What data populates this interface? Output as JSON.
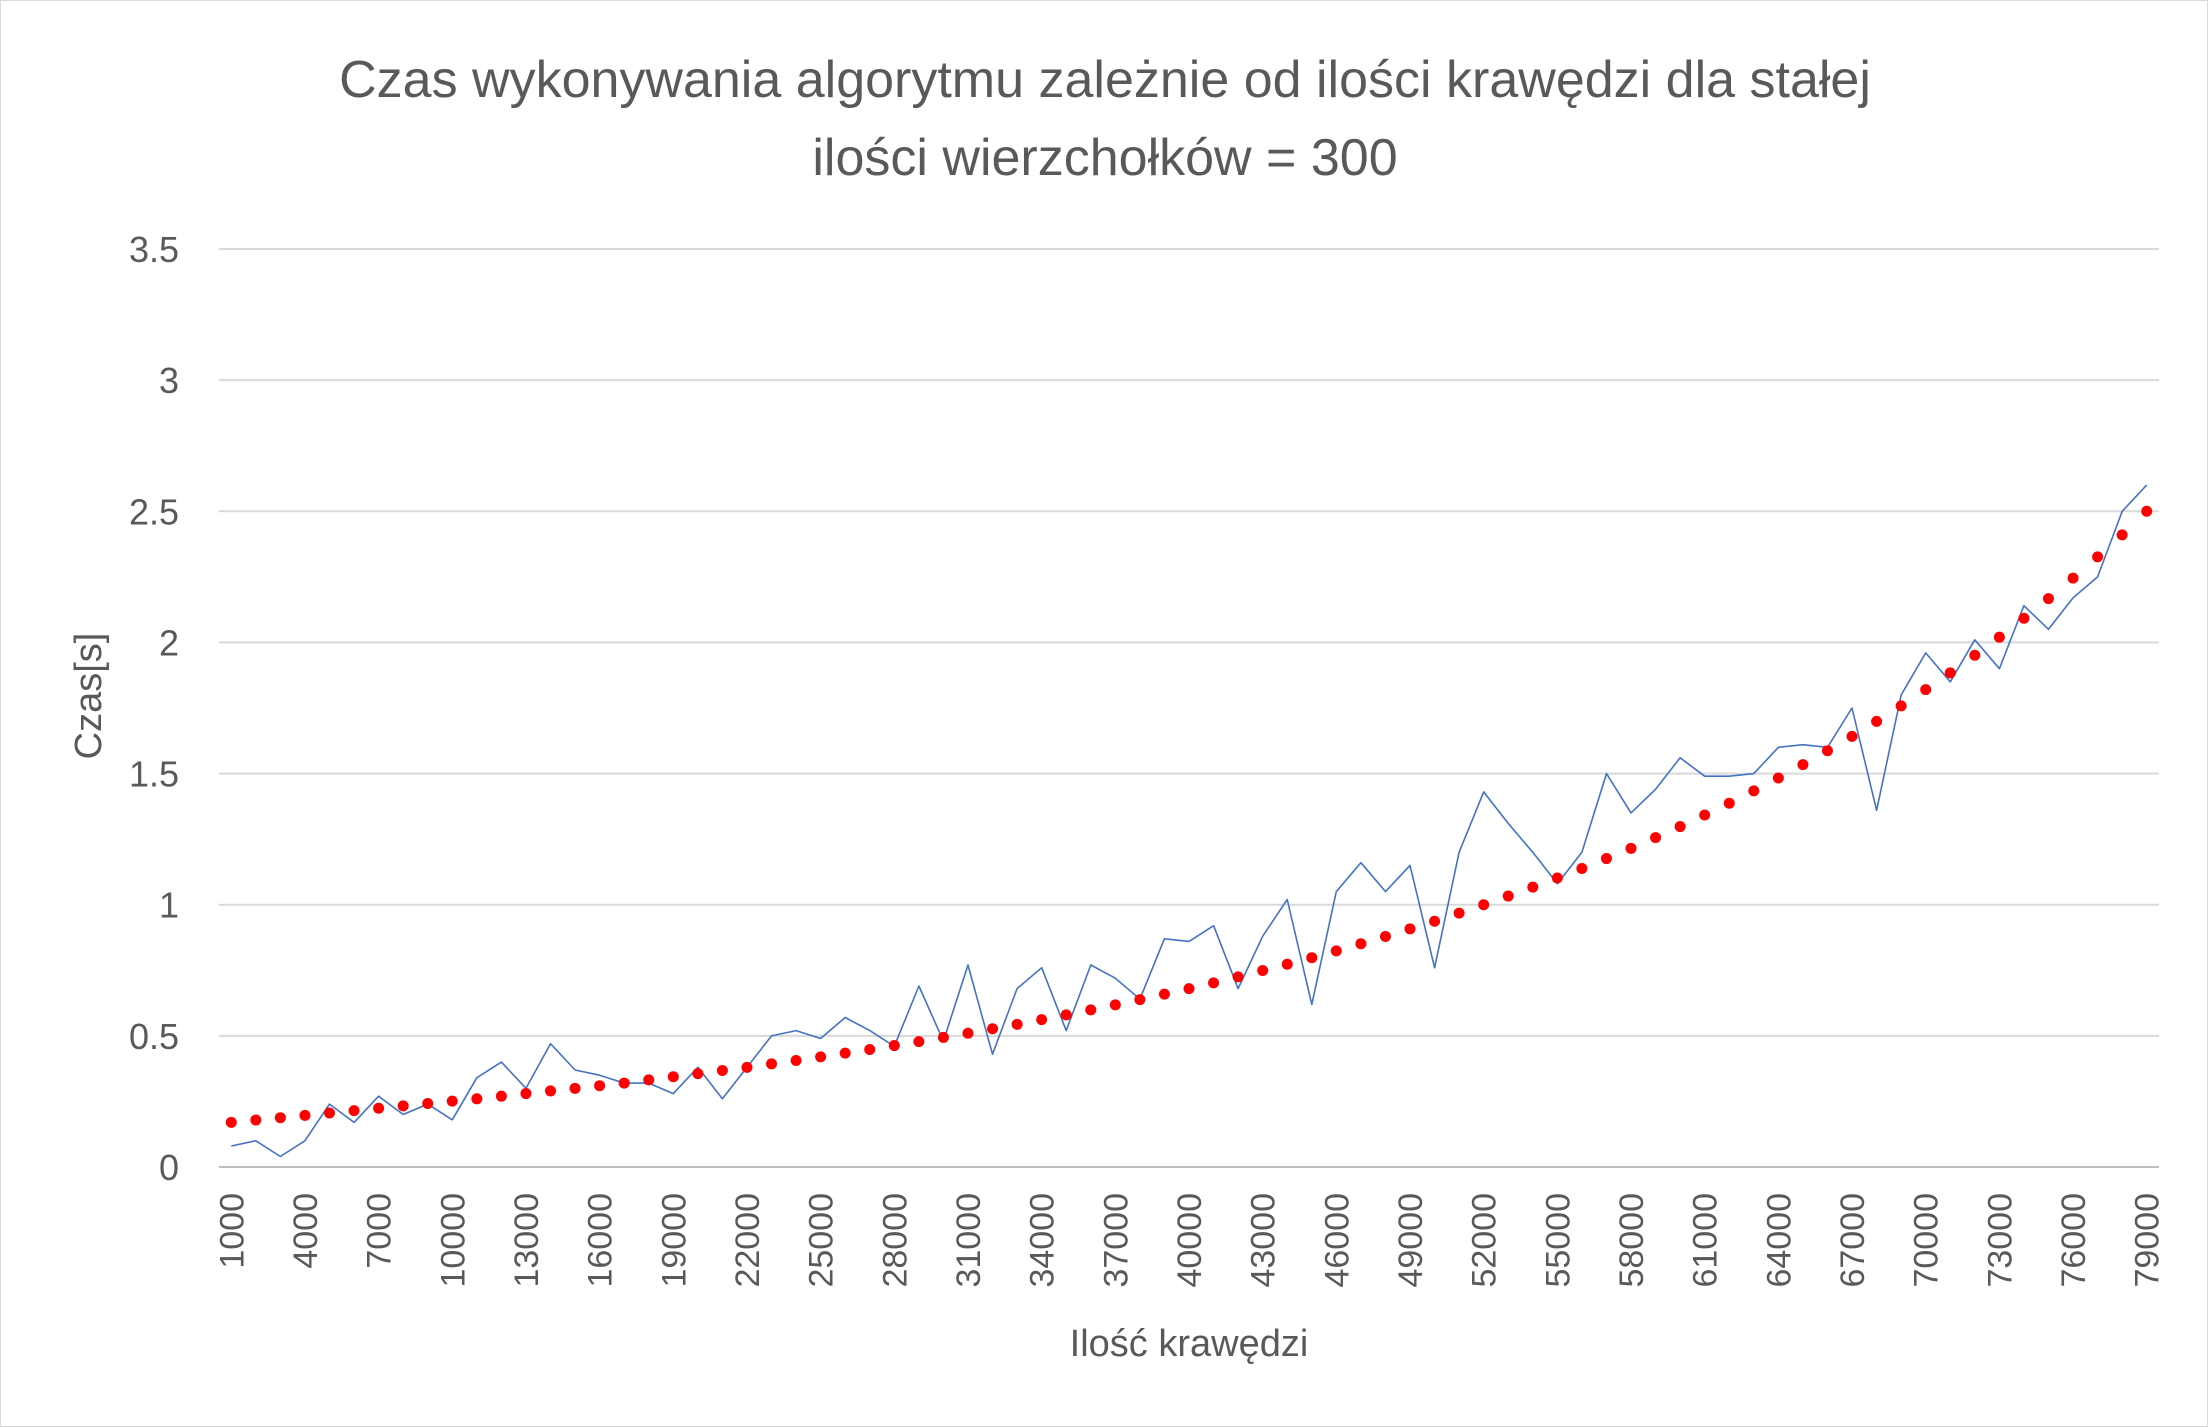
{
  "chart_data": {
    "type": "line",
    "title_lines": [
      "Czas wykonywania algorytmu zależnie od ilości krawędzi dla stałej",
      "ilości wierzchołków = 300"
    ],
    "xlabel": "Ilość krawędzi",
    "ylabel": "Czas[s]",
    "ylim": [
      0,
      3.5
    ],
    "yticks": [
      "0",
      "0.5",
      "1",
      "1.5",
      "2",
      "2.5",
      "3",
      "3.5"
    ],
    "x": [
      1000,
      2000,
      3000,
      4000,
      5000,
      6000,
      7000,
      8000,
      9000,
      10000,
      11000,
      12000,
      13000,
      14000,
      15000,
      16000,
      17000,
      18000,
      19000,
      20000,
      21000,
      22000,
      23000,
      24000,
      25000,
      26000,
      27000,
      28000,
      29000,
      30000,
      31000,
      32000,
      33000,
      34000,
      35000,
      36000,
      37000,
      38000,
      39000,
      40000,
      41000,
      42000,
      43000,
      44000,
      45000,
      46000,
      47000,
      48000,
      49000,
      50000,
      51000,
      52000,
      53000,
      54000,
      55000,
      56000,
      57000,
      58000,
      59000,
      60000,
      61000,
      62000,
      63000,
      64000,
      65000,
      66000,
      67000,
      68000,
      69000,
      70000,
      71000,
      72000,
      73000,
      74000,
      75000,
      76000,
      77000,
      78000,
      79000
    ],
    "x_tick_labels": [
      "1000",
      "4000",
      "7000",
      "10000",
      "13000",
      "16000",
      "19000",
      "22000",
      "25000",
      "28000",
      "31000",
      "34000",
      "37000",
      "40000",
      "43000",
      "46000",
      "49000",
      "52000",
      "55000",
      "58000",
      "61000",
      "64000",
      "67000",
      "70000",
      "73000",
      "76000",
      "79000"
    ],
    "series": [
      {
        "style": "line",
        "color": "#4472c4",
        "values": [
          0.08,
          0.1,
          0.04,
          0.1,
          0.24,
          0.17,
          0.27,
          0.2,
          0.24,
          0.18,
          0.34,
          0.4,
          0.3,
          0.47,
          0.37,
          0.35,
          0.32,
          0.32,
          0.28,
          0.38,
          0.26,
          0.38,
          0.5,
          0.52,
          0.49,
          0.57,
          0.52,
          0.46,
          0.69,
          0.48,
          0.77,
          0.43,
          0.68,
          0.76,
          0.52,
          0.77,
          0.72,
          0.64,
          0.87,
          0.86,
          0.92,
          0.68,
          0.88,
          1.02,
          0.62,
          1.05,
          1.16,
          1.05,
          1.15,
          0.76,
          1.2,
          1.43,
          1.31,
          1.2,
          1.08,
          1.2,
          1.5,
          1.35,
          1.44,
          1.56,
          1.49,
          1.49,
          1.5,
          1.6,
          1.61,
          1.6,
          1.75,
          1.36,
          1.8,
          1.96,
          1.85,
          2.01,
          1.9,
          2.14,
          2.05,
          2.17,
          2.25,
          2.5,
          2.6
        ]
      },
      {
        "style": "trendline-dotted",
        "color": "#ff0000",
        "values": [
          0.17,
          0.179,
          0.188,
          0.197,
          0.206,
          0.215,
          0.224,
          0.233,
          0.242,
          0.251,
          0.26,
          0.27,
          0.28,
          0.29,
          0.3,
          0.31,
          0.32,
          0.332,
          0.344,
          0.356,
          0.368,
          0.38,
          0.393,
          0.406,
          0.42,
          0.434,
          0.448,
          0.463,
          0.478,
          0.494,
          0.51,
          0.527,
          0.544,
          0.562,
          0.58,
          0.599,
          0.618,
          0.638,
          0.659,
          0.68,
          0.702,
          0.725,
          0.749,
          0.773,
          0.798,
          0.824,
          0.851,
          0.879,
          0.908,
          0.937,
          0.968,
          1.0,
          1.033,
          1.067,
          1.102,
          1.138,
          1.176,
          1.215,
          1.256,
          1.298,
          1.342,
          1.387,
          1.434,
          1.483,
          1.534,
          1.587,
          1.642,
          1.699,
          1.758,
          1.82,
          1.884,
          1.951,
          2.02,
          2.092,
          2.167,
          2.245,
          2.326,
          2.41,
          2.5
        ]
      }
    ],
    "gridlines": "horizontal",
    "legend": "none"
  }
}
